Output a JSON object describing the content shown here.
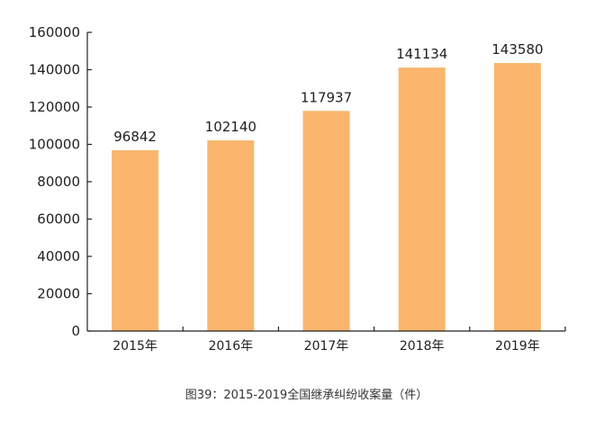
{
  "chart_data": {
    "type": "bar",
    "title": "图39：2015-2019全国继承纠纷收案量（件）",
    "categories": [
      "2015年",
      "2016年",
      "2017年",
      "2018年",
      "2019年"
    ],
    "values": [
      96842,
      102140,
      117937,
      141134,
      143580
    ],
    "data_labels": [
      "96842",
      "102140",
      "117937",
      "141134",
      "143580"
    ],
    "yticks": [
      0,
      20000,
      40000,
      60000,
      80000,
      100000,
      120000,
      140000,
      160000
    ],
    "ylim": [
      0,
      160000
    ],
    "xlabel": "",
    "ylabel": "",
    "grid": false,
    "legend": "none",
    "bar_color": "#F9B66C",
    "axis_color": "#222222"
  }
}
